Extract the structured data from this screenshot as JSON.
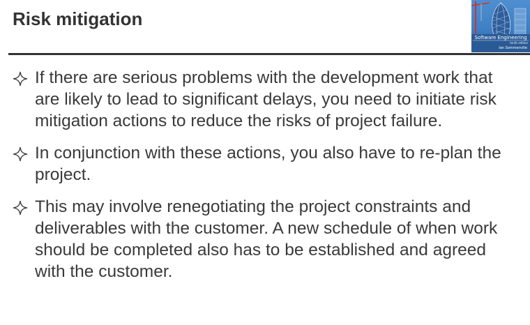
{
  "slide": {
    "title": "Risk mitigation"
  },
  "book_cover": {
    "title": "Software Engineering",
    "edition": "tenth edition",
    "author": "Ian Sommerville"
  },
  "bullet_icon": "four-point-star-icon",
  "bullets": [
    {
      "text": "If there are serious problems with the development work that are likely to lead to significant delays, you need to initiate risk mitigation actions to reduce the risks of project failure."
    },
    {
      "text": "In conjunction with these actions, you also have to re-plan the project."
    },
    {
      "text": "This may involve renegotiating the project constraints and deliverables with the customer. A new schedule of when work should be completed also has to be established and agreed with the customer."
    }
  ],
  "colors": {
    "text": "#3a3a3a",
    "title": "#333333",
    "rule": "#333333",
    "cover_blue": "#3f7fc4"
  }
}
